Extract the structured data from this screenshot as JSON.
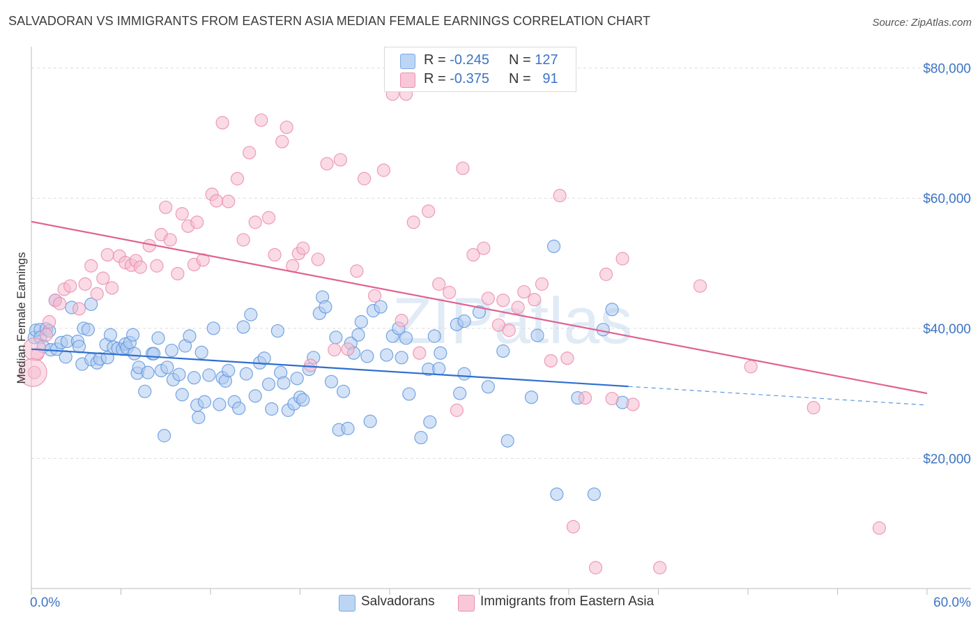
{
  "title": "SALVADORAN VS IMMIGRANTS FROM EASTERN ASIA MEDIAN FEMALE EARNINGS CORRELATION CHART",
  "source": "Source: ZipAtlas.com",
  "watermark": "ZIPatlas",
  "legend_top": [
    {
      "r_label": "R =",
      "r_value": "-0.245",
      "n_label": "N =",
      "n_value": "127",
      "color": "#7aaae8"
    },
    {
      "r_label": "R =",
      "r_value": "-0.375",
      "n_label": "N =",
      "n_value": "91",
      "color": "#f08fb0"
    }
  ],
  "legend_bottom": [
    {
      "label": "Salvadorans",
      "color": "#7aaae8"
    },
    {
      "label": "Immigrants from Eastern Asia",
      "color": "#f08fb0"
    }
  ],
  "colors": {
    "blue": "#4a86d8",
    "blue_fill": "#aecbf0",
    "pink": "#e8709a",
    "pink_fill": "#f6bccf",
    "tick": "#3d74c4"
  },
  "chart_data": {
    "type": "scatter",
    "title": "SALVADORAN VS IMMIGRANTS FROM EASTERN ASIA MEDIAN FEMALE EARNINGS CORRELATION CHART",
    "xlabel": "",
    "ylabel": "Median Female Earnings",
    "xlim": [
      0,
      60
    ],
    "ylim": [
      0,
      82000
    ],
    "x_ticks": [
      "0.0%",
      "60.0%"
    ],
    "y_ticks": [
      {
        "value": 20000,
        "label": "$20,000"
      },
      {
        "value": 40000,
        "label": "$40,000"
      },
      {
        "value": 60000,
        "label": "$60,000"
      },
      {
        "value": 80000,
        "label": "$80,000"
      }
    ],
    "grid": "horizontal dashed",
    "legend_position": "top-center",
    "series": [
      {
        "name": "Salvadorans",
        "color": "#4a86d8",
        "trend": {
          "x_start": 0,
          "y_start": 36800,
          "x_solid_end": 40,
          "x_end": 60,
          "y_end": 28200
        },
        "points": [
          [
            0.2,
            38600
          ],
          [
            0.3,
            39700
          ],
          [
            0.6,
            39800
          ],
          [
            0.6,
            38600
          ],
          [
            0.8,
            37200
          ],
          [
            1.0,
            39900
          ],
          [
            1.2,
            39600
          ],
          [
            1.3,
            36700
          ],
          [
            1.6,
            44300
          ],
          [
            1.7,
            36800
          ],
          [
            2.0,
            37800
          ],
          [
            2.3,
            35600
          ],
          [
            2.4,
            38000
          ],
          [
            2.7,
            43200
          ],
          [
            3.1,
            38000
          ],
          [
            3.2,
            37200
          ],
          [
            3.4,
            34500
          ],
          [
            3.5,
            40000
          ],
          [
            3.8,
            39800
          ],
          [
            4.0,
            43700
          ],
          [
            4.0,
            35200
          ],
          [
            4.4,
            34700
          ],
          [
            4.6,
            35300
          ],
          [
            5.0,
            37500
          ],
          [
            5.1,
            35500
          ],
          [
            5.3,
            39000
          ],
          [
            5.5,
            37100
          ],
          [
            5.8,
            36900
          ],
          [
            6.1,
            36800
          ],
          [
            6.3,
            37600
          ],
          [
            6.4,
            37000
          ],
          [
            6.6,
            37800
          ],
          [
            6.8,
            39000
          ],
          [
            6.9,
            36100
          ],
          [
            7.1,
            33100
          ],
          [
            7.2,
            34000
          ],
          [
            7.6,
            30300
          ],
          [
            7.8,
            33200
          ],
          [
            8.1,
            36100
          ],
          [
            8.2,
            36100
          ],
          [
            8.5,
            38500
          ],
          [
            8.7,
            33500
          ],
          [
            8.9,
            23500
          ],
          [
            9.1,
            34000
          ],
          [
            9.4,
            36600
          ],
          [
            9.5,
            32100
          ],
          [
            9.9,
            32900
          ],
          [
            10.1,
            29800
          ],
          [
            10.3,
            37300
          ],
          [
            10.6,
            38800
          ],
          [
            10.9,
            32400
          ],
          [
            11.1,
            28200
          ],
          [
            11.2,
            26300
          ],
          [
            11.4,
            36300
          ],
          [
            11.6,
            28700
          ],
          [
            11.9,
            32800
          ],
          [
            12.2,
            40000
          ],
          [
            12.6,
            28300
          ],
          [
            12.8,
            32400
          ],
          [
            13.0,
            31900
          ],
          [
            13.2,
            33500
          ],
          [
            13.6,
            28700
          ],
          [
            13.9,
            27700
          ],
          [
            14.2,
            40200
          ],
          [
            14.4,
            33000
          ],
          [
            14.7,
            42100
          ],
          [
            15.0,
            29600
          ],
          [
            15.3,
            34700
          ],
          [
            15.6,
            35400
          ],
          [
            15.9,
            31400
          ],
          [
            16.1,
            27600
          ],
          [
            16.5,
            39600
          ],
          [
            16.7,
            33200
          ],
          [
            16.9,
            31600
          ],
          [
            17.2,
            27400
          ],
          [
            17.6,
            28400
          ],
          [
            17.8,
            32300
          ],
          [
            18.0,
            29400
          ],
          [
            18.2,
            29000
          ],
          [
            18.6,
            33700
          ],
          [
            18.9,
            35500
          ],
          [
            19.3,
            42300
          ],
          [
            19.5,
            44800
          ],
          [
            19.7,
            43300
          ],
          [
            20.1,
            31800
          ],
          [
            20.4,
            38600
          ],
          [
            20.6,
            24400
          ],
          [
            20.9,
            30300
          ],
          [
            21.2,
            24600
          ],
          [
            21.4,
            37700
          ],
          [
            21.6,
            36200
          ],
          [
            21.9,
            39000
          ],
          [
            22.1,
            41000
          ],
          [
            22.5,
            35700
          ],
          [
            22.7,
            25700
          ],
          [
            22.9,
            42700
          ],
          [
            23.4,
            43300
          ],
          [
            23.8,
            35900
          ],
          [
            24.2,
            38800
          ],
          [
            24.6,
            40000
          ],
          [
            24.8,
            35500
          ],
          [
            25.1,
            38500
          ],
          [
            25.3,
            29900
          ],
          [
            26.1,
            23200
          ],
          [
            26.6,
            33700
          ],
          [
            26.7,
            25600
          ],
          [
            27.0,
            38800
          ],
          [
            27.3,
            33800
          ],
          [
            27.4,
            36200
          ],
          [
            28.5,
            40600
          ],
          [
            28.7,
            30000
          ],
          [
            29.0,
            41100
          ],
          [
            29.0,
            33000
          ],
          [
            30.0,
            42500
          ],
          [
            30.6,
            31000
          ],
          [
            31.6,
            36500
          ],
          [
            31.9,
            22700
          ],
          [
            33.5,
            29400
          ],
          [
            33.9,
            38900
          ],
          [
            35.0,
            52600
          ],
          [
            35.2,
            14500
          ],
          [
            36.6,
            29300
          ],
          [
            37.7,
            14500
          ],
          [
            38.3,
            39800
          ],
          [
            38.9,
            42900
          ],
          [
            39.6,
            28600
          ]
        ]
      },
      {
        "name": "Immigrants from Eastern Asia",
        "color": "#e8709a",
        "trend": {
          "x_start": 0,
          "y_start": 56400,
          "x_end": 60,
          "y_end": 30000
        },
        "points": [
          [
            0.2,
            33200
          ],
          [
            0.4,
            36000
          ],
          [
            1.0,
            39000
          ],
          [
            1.2,
            41000
          ],
          [
            1.6,
            44300
          ],
          [
            1.9,
            43800
          ],
          [
            2.2,
            46000
          ],
          [
            2.6,
            46500
          ],
          [
            3.2,
            43000
          ],
          [
            3.6,
            46800
          ],
          [
            4.0,
            49600
          ],
          [
            4.4,
            45300
          ],
          [
            4.8,
            47700
          ],
          [
            5.1,
            51300
          ],
          [
            5.4,
            46200
          ],
          [
            5.9,
            51100
          ],
          [
            6.3,
            50100
          ],
          [
            6.7,
            49700
          ],
          [
            7.0,
            50400
          ],
          [
            7.3,
            49400
          ],
          [
            7.9,
            52700
          ],
          [
            8.4,
            49600
          ],
          [
            8.7,
            54400
          ],
          [
            9.0,
            58600
          ],
          [
            9.3,
            53600
          ],
          [
            9.8,
            48400
          ],
          [
            10.1,
            57600
          ],
          [
            10.5,
            55700
          ],
          [
            10.9,
            49800
          ],
          [
            11.1,
            56300
          ],
          [
            11.5,
            50500
          ],
          [
            12.1,
            60600
          ],
          [
            12.4,
            59600
          ],
          [
            12.8,
            71600
          ],
          [
            13.2,
            59500
          ],
          [
            13.8,
            63000
          ],
          [
            14.2,
            53600
          ],
          [
            14.6,
            67000
          ],
          [
            15.0,
            56300
          ],
          [
            15.4,
            72000
          ],
          [
            15.9,
            57000
          ],
          [
            16.3,
            51300
          ],
          [
            16.8,
            68700
          ],
          [
            17.1,
            70900
          ],
          [
            17.5,
            49600
          ],
          [
            17.9,
            51500
          ],
          [
            18.2,
            52300
          ],
          [
            18.7,
            34300
          ],
          [
            19.2,
            50600
          ],
          [
            19.8,
            65300
          ],
          [
            20.3,
            36700
          ],
          [
            20.7,
            65900
          ],
          [
            21.2,
            36800
          ],
          [
            21.8,
            48800
          ],
          [
            22.3,
            63000
          ],
          [
            23.0,
            45000
          ],
          [
            23.6,
            64300
          ],
          [
            24.2,
            76000
          ],
          [
            24.8,
            41200
          ],
          [
            25.1,
            76000
          ],
          [
            25.6,
            56300
          ],
          [
            26.0,
            36200
          ],
          [
            26.6,
            58000
          ],
          [
            27.3,
            46800
          ],
          [
            28.0,
            45500
          ],
          [
            28.5,
            27400
          ],
          [
            28.9,
            64600
          ],
          [
            29.6,
            51300
          ],
          [
            30.3,
            52300
          ],
          [
            30.6,
            44600
          ],
          [
            31.3,
            40500
          ],
          [
            31.6,
            44300
          ],
          [
            32.0,
            39700
          ],
          [
            32.6,
            43200
          ],
          [
            33.0,
            45600
          ],
          [
            33.7,
            44400
          ],
          [
            34.2,
            46800
          ],
          [
            34.8,
            35000
          ],
          [
            35.4,
            60400
          ],
          [
            35.9,
            35400
          ],
          [
            36.3,
            9500
          ],
          [
            37.1,
            29300
          ],
          [
            37.8,
            3200
          ],
          [
            38.5,
            48300
          ],
          [
            38.9,
            29200
          ],
          [
            39.6,
            50700
          ],
          [
            40.3,
            28300
          ],
          [
            42.1,
            3200
          ],
          [
            44.8,
            46500
          ],
          [
            48.2,
            34100
          ],
          [
            52.4,
            27800
          ],
          [
            56.8,
            9300
          ]
        ]
      }
    ]
  }
}
